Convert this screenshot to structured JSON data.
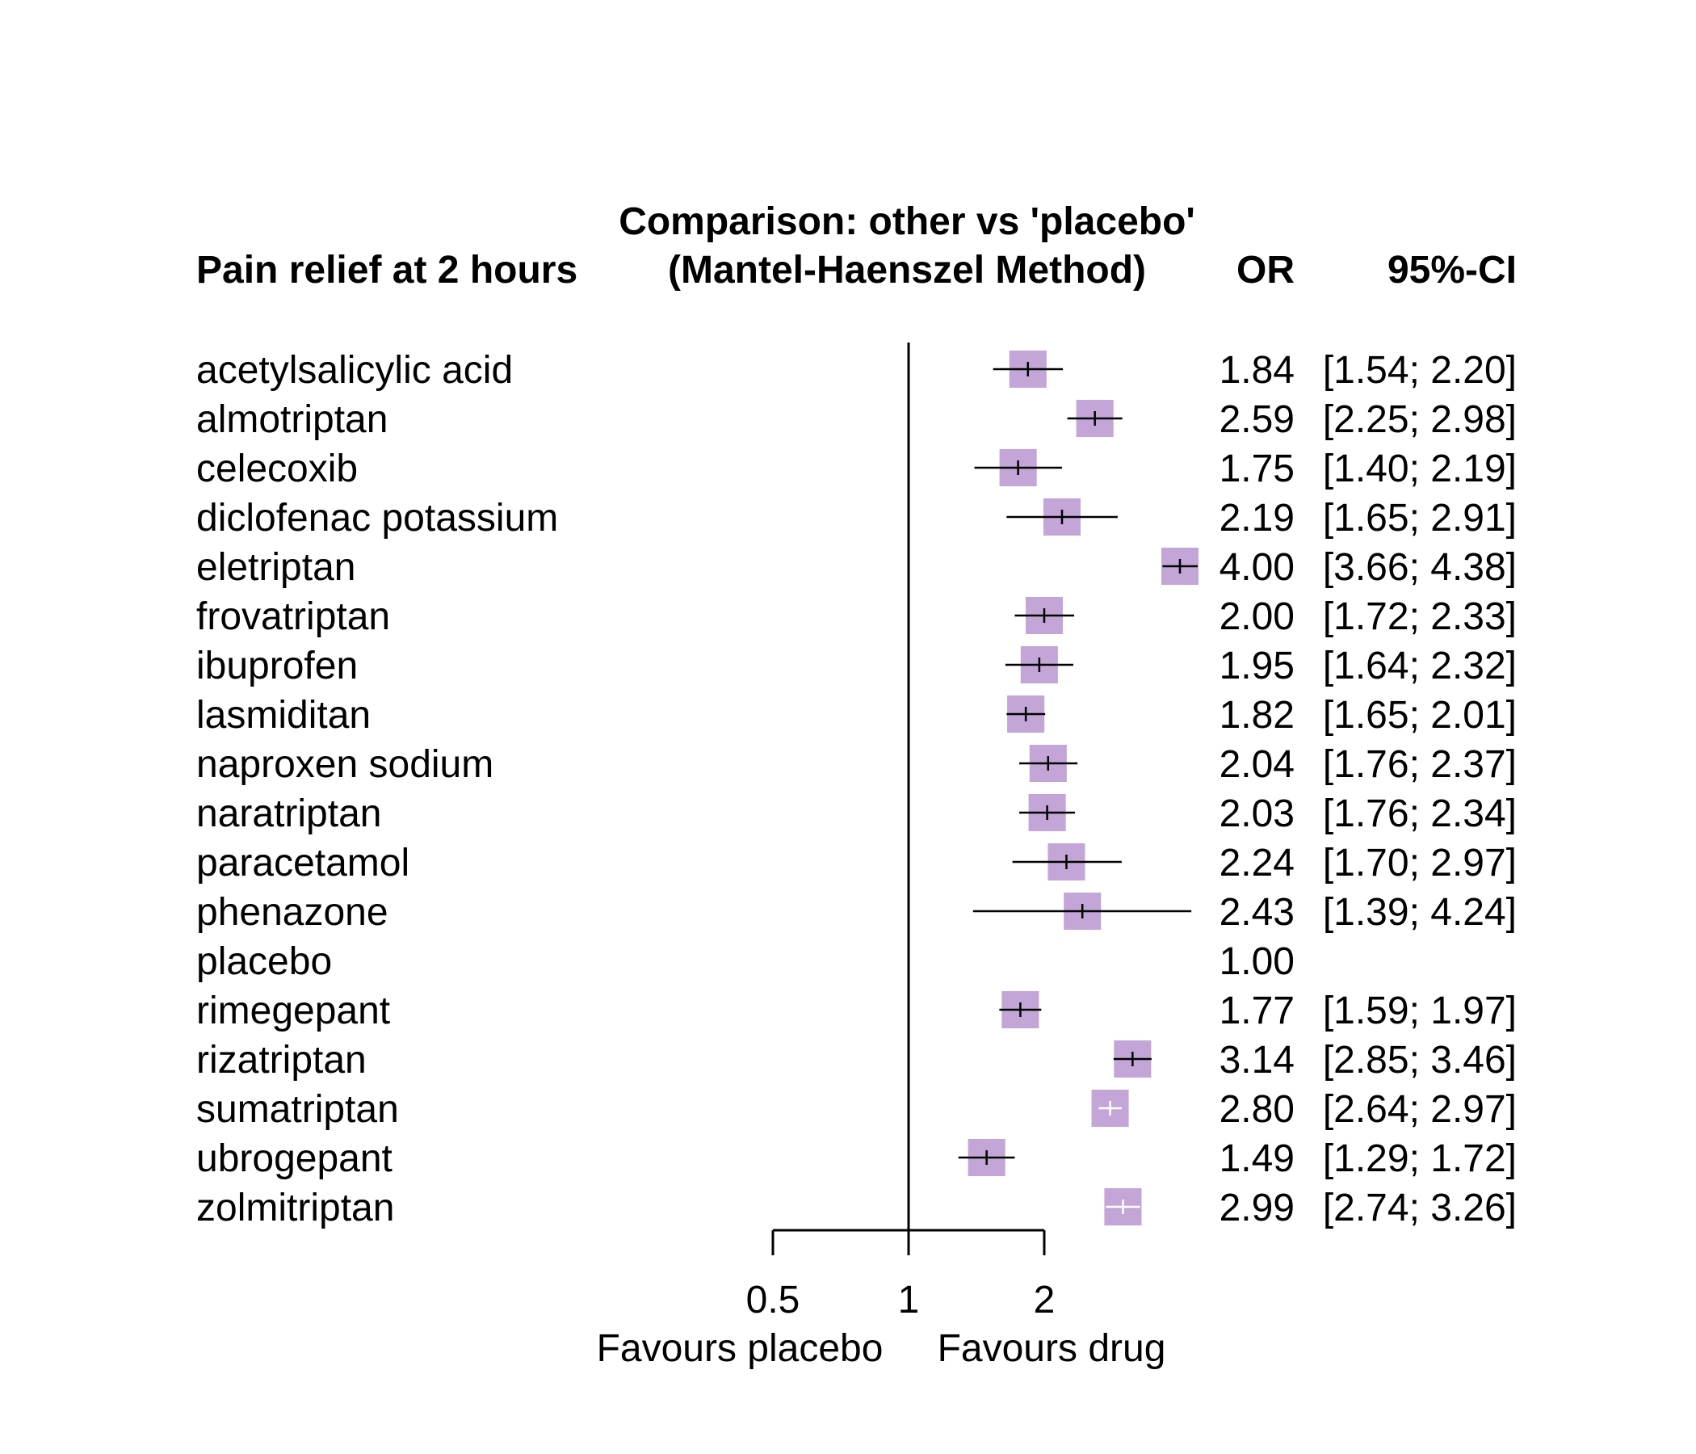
{
  "chart_data": {
    "type": "forest",
    "header": {
      "title_line1": "Comparison: other vs 'placebo'",
      "title_line2": "(Mantel-Haenszel Method)",
      "label_column": "Pain relief at 2 hours",
      "effect_column": "OR",
      "ci_column": "95%-CI"
    },
    "x_axis": {
      "scale": "log",
      "ticks": [
        {
          "value": 0.5,
          "label": "0.5"
        },
        {
          "value": 1,
          "label": "1"
        },
        {
          "value": 2,
          "label": "2"
        }
      ],
      "reference_line": 1,
      "label_left": "Favours placebo",
      "label_right": "Favours drug"
    },
    "colors": {
      "box": "#c4a5d7",
      "ci_line": "#000000",
      "ci_line_light": "#ffffff"
    },
    "rows": [
      {
        "label": "acetylsalicylic acid",
        "or": 1.84,
        "lower": 1.54,
        "upper": 2.2,
        "or_text": "1.84",
        "ci_text": "[1.54; 2.20]",
        "box_scale": 0.96
      },
      {
        "label": "almotriptan",
        "or": 2.59,
        "lower": 2.25,
        "upper": 2.98,
        "or_text": "2.59",
        "ci_text": "[2.25; 2.98]",
        "box_scale": 0.96
      },
      {
        "label": "celecoxib",
        "or": 1.75,
        "lower": 1.4,
        "upper": 2.19,
        "or_text": "1.75",
        "ci_text": "[1.40; 2.19]",
        "box_scale": 0.96
      },
      {
        "label": "diclofenac potassium",
        "or": 2.19,
        "lower": 1.65,
        "upper": 2.91,
        "or_text": "2.19",
        "ci_text": "[1.65; 2.91]",
        "box_scale": 0.96
      },
      {
        "label": "eletriptan",
        "or": 4.0,
        "lower": 3.66,
        "upper": 4.38,
        "or_text": "4.00",
        "ci_text": "[3.66; 4.38]",
        "box_scale": 0.96
      },
      {
        "label": "frovatriptan",
        "or": 2.0,
        "lower": 1.72,
        "upper": 2.33,
        "or_text": "2.00",
        "ci_text": "[1.72; 2.33]",
        "box_scale": 0.96
      },
      {
        "label": "ibuprofen",
        "or": 1.95,
        "lower": 1.64,
        "upper": 2.32,
        "or_text": "1.95",
        "ci_text": "[1.64; 2.32]",
        "box_scale": 0.96
      },
      {
        "label": "lasmiditan",
        "or": 1.82,
        "lower": 1.65,
        "upper": 2.01,
        "or_text": "1.82",
        "ci_text": "[1.65; 2.01]",
        "box_scale": 0.96
      },
      {
        "label": "naproxen sodium",
        "or": 2.04,
        "lower": 1.76,
        "upper": 2.37,
        "or_text": "2.04",
        "ci_text": "[1.76; 2.37]",
        "box_scale": 0.96
      },
      {
        "label": "naratriptan",
        "or": 2.03,
        "lower": 1.76,
        "upper": 2.34,
        "or_text": "2.03",
        "ci_text": "[1.76; 2.34]",
        "box_scale": 0.96
      },
      {
        "label": "paracetamol",
        "or": 2.24,
        "lower": 1.7,
        "upper": 2.97,
        "or_text": "2.24",
        "ci_text": "[1.70; 2.97]",
        "box_scale": 0.96
      },
      {
        "label": "phenazone",
        "or": 2.43,
        "lower": 1.39,
        "upper": 4.24,
        "or_text": "2.43",
        "ci_text": "[1.39; 4.24]",
        "box_scale": 0.96
      },
      {
        "label": "placebo",
        "or": 1.0,
        "lower": null,
        "upper": null,
        "or_text": "1.00",
        "ci_text": "",
        "box_scale": 0
      },
      {
        "label": "rimegepant",
        "or": 1.77,
        "lower": 1.59,
        "upper": 1.97,
        "or_text": "1.77",
        "ci_text": "[1.59; 1.97]",
        "box_scale": 0.96
      },
      {
        "label": "rizatriptan",
        "or": 3.14,
        "lower": 2.85,
        "upper": 3.46,
        "or_text": "3.14",
        "ci_text": "[2.85; 3.46]",
        "box_scale": 0.96
      },
      {
        "label": "sumatriptan",
        "or": 2.8,
        "lower": 2.64,
        "upper": 2.97,
        "or_text": "2.80",
        "ci_text": "[2.64; 2.97]",
        "box_scale": 0.96,
        "ci_light": true
      },
      {
        "label": "ubrogepant",
        "or": 1.49,
        "lower": 1.29,
        "upper": 1.72,
        "or_text": "1.49",
        "ci_text": "[1.29; 1.72]",
        "box_scale": 0.96
      },
      {
        "label": "zolmitriptan",
        "or": 2.99,
        "lower": 2.74,
        "upper": 3.26,
        "or_text": "2.99",
        "ci_text": "[2.74; 3.26]",
        "box_scale": 0.96,
        "ci_light": true
      }
    ]
  }
}
